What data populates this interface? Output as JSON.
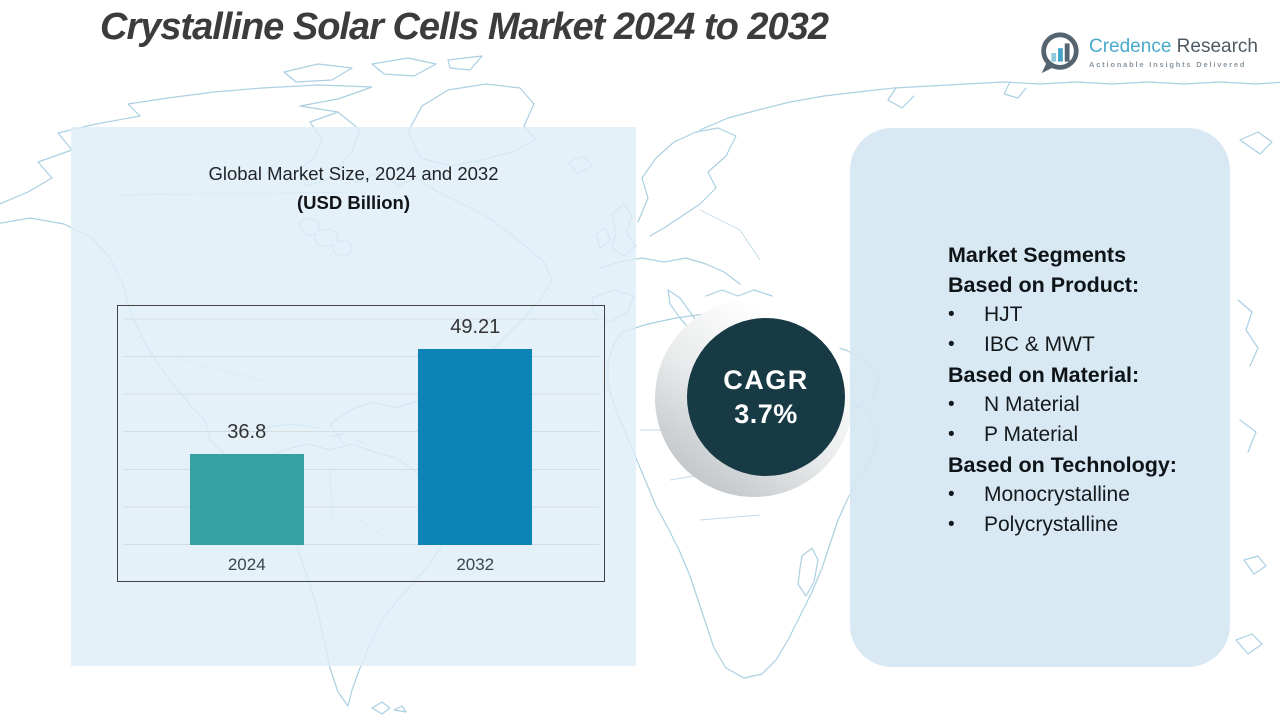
{
  "header": {
    "title": "Crystalline Solar Cells Market 2024 to 2032",
    "logo": {
      "brand_primary": "Credence",
      "brand_secondary": "Research",
      "tagline": "Actionable Insights Delivered"
    }
  },
  "chart_data": {
    "type": "bar",
    "title": "Global Market Size, 2024 and 2032",
    "subtitle": "(USD Billion)",
    "categories": [
      "2024",
      "2032"
    ],
    "values": [
      36.8,
      49.21
    ],
    "value_labels": [
      "36.8",
      "49.21"
    ],
    "bar_colors": [
      "#35a2a1",
      "#0d84b5"
    ],
    "ylabel": "USD Billion",
    "ylim": [
      26,
      52
    ],
    "grid": true,
    "legend": false
  },
  "cagr": {
    "label": "CAGR",
    "value": "3.7%"
  },
  "segments": {
    "title": "Market Segments",
    "sections": [
      {
        "heading": "Based on Product:",
        "items": [
          "HJT",
          "IBC & MWT"
        ]
      },
      {
        "heading": "Based on Material:",
        "items": [
          "N Material",
          "P Material"
        ]
      },
      {
        "heading": "Based on Technology:",
        "items": [
          "Monocrystalline",
          "Polycrystalline"
        ]
      }
    ]
  },
  "colors": {
    "bar_2024": "#35a2a1",
    "bar_2032": "#0d84b5",
    "cagr_circle": "#173a45",
    "left_panel": "#e7f0f8",
    "right_panel": "#dcebf4",
    "logo_blue": "#49aacb",
    "map_line": "#abd0e2"
  }
}
